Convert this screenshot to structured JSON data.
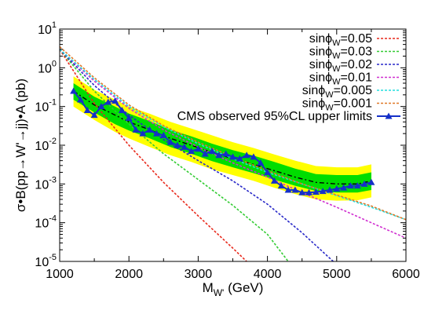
{
  "chart_data": {
    "type": "line",
    "xlabel_main": "M",
    "xlabel_sub": "W'",
    "xlabel_unit": " (GeV)",
    "ylabel": "σ•B(pp→W'→jj)•A (pb)",
    "xlim": [
      1000,
      6000
    ],
    "ylim": [
      1e-05,
      10
    ],
    "yscale": "log",
    "legend_position": "top-right",
    "x_ticks": [
      "1000",
      "2000",
      "3000",
      "4000",
      "5000",
      "6000"
    ],
    "y_ticks": [
      {
        "base": "10",
        "exp": "-5"
      },
      {
        "base": "10",
        "exp": "-4"
      },
      {
        "base": "10",
        "exp": "-3"
      },
      {
        "base": "10",
        "exp": "-2"
      },
      {
        "base": "10",
        "exp": "-1"
      },
      {
        "base": "10",
        "exp": "0"
      },
      {
        "base": "10",
        "exp": "1"
      }
    ],
    "series": [
      {
        "name_main": "sinϕ",
        "name_sub": "W",
        "name_val": "=0.05",
        "color": "#e8291c",
        "x": [
          1000,
          1500,
          2000,
          2500,
          3000,
          3500,
          3700
        ],
        "y": [
          3.0,
          0.12,
          0.01,
          0.0011,
          0.00015,
          2.2e-05,
          1e-05
        ]
      },
      {
        "name_main": "sinϕ",
        "name_sub": "W",
        "name_val": "=0.03",
        "color": "#33cc33",
        "x": [
          1000,
          1500,
          2000,
          2500,
          3000,
          3500,
          4000,
          4300
        ],
        "y": [
          3.0,
          0.25,
          0.035,
          0.006,
          0.0013,
          0.00028,
          5e-05,
          1e-05
        ]
      },
      {
        "name_main": "sinϕ",
        "name_sub": "W",
        "name_val": "=0.02",
        "color": "#2828c8",
        "x": [
          1000,
          1500,
          2000,
          2500,
          3000,
          3500,
          4000,
          4500,
          4950
        ],
        "y": [
          3.0,
          0.35,
          0.06,
          0.014,
          0.004,
          0.0012,
          0.0003,
          5.5e-05,
          1e-05
        ]
      },
      {
        "name_main": "sinϕ",
        "name_sub": "W",
        "name_val": "=0.01",
        "color": "#d030d0",
        "x": [
          1000,
          1500,
          2000,
          2500,
          3000,
          3500,
          4000,
          4500,
          5000,
          5500,
          6000
        ],
        "y": [
          3.0,
          0.45,
          0.09,
          0.025,
          0.009,
          0.0035,
          0.0015,
          0.0006,
          0.00025,
          0.0001,
          4e-05
        ]
      },
      {
        "name_main": "sinϕ",
        "name_sub": "W",
        "name_val": "=0.005",
        "color": "#22dddd",
        "x": [
          1000,
          1500,
          2000,
          2500,
          3000,
          3500,
          4000,
          4500,
          5000,
          5500,
          6000
        ],
        "y": [
          3.0,
          0.5,
          0.1,
          0.03,
          0.011,
          0.0045,
          0.002,
          0.001,
          0.0005,
          0.00025,
          0.00012
        ]
      },
      {
        "name_main": "sinϕ",
        "name_sub": "W",
        "name_val": "=0.001",
        "color": "#e07828",
        "x": [
          1000,
          1500,
          2000,
          2500,
          3000,
          3500,
          4000,
          4500,
          5000,
          5500,
          6000
        ],
        "y": [
          3.5,
          0.55,
          0.11,
          0.032,
          0.012,
          0.005,
          0.0022,
          0.001,
          0.00052,
          0.00027,
          0.00012
        ]
      }
    ],
    "observed": {
      "name": "CMS observed 95%CL upper limits",
      "color": "#1530c8",
      "x": [
        1200,
        1300,
        1400,
        1500,
        1600,
        1700,
        1800,
        1900,
        2000,
        2100,
        2200,
        2300,
        2400,
        2500,
        2600,
        2700,
        2800,
        2900,
        3000,
        3100,
        3200,
        3300,
        3400,
        3500,
        3600,
        3700,
        3800,
        3900,
        4000,
        4100,
        4200,
        4300,
        4400,
        4500,
        4600,
        4700,
        4800,
        4900,
        5000,
        5100,
        5200,
        5300,
        5400,
        5500
      ],
      "y": [
        0.25,
        0.15,
        0.08,
        0.06,
        0.1,
        0.13,
        0.14,
        0.08,
        0.05,
        0.025,
        0.02,
        0.025,
        0.02,
        0.018,
        0.012,
        0.01,
        0.009,
        0.007,
        0.008,
        0.006,
        0.007,
        0.0055,
        0.006,
        0.005,
        0.0045,
        0.0055,
        0.005,
        0.0035,
        0.002,
        0.0012,
        0.0009,
        0.0007,
        0.0007,
        0.0006,
        0.0006,
        0.00062,
        0.00065,
        0.0007,
        0.00075,
        0.0008,
        0.0009,
        0.0009,
        0.001,
        0.0011
      ]
    },
    "expected": {
      "color": "#000000",
      "x": [
        1200,
        1500,
        1800,
        2000,
        2300,
        2600,
        2900,
        3200,
        3500,
        3800,
        4100,
        4400,
        4700,
        5000,
        5300,
        5500
      ],
      "y": [
        0.25,
        0.11,
        0.06,
        0.04,
        0.025,
        0.015,
        0.01,
        0.0065,
        0.0045,
        0.0032,
        0.0022,
        0.0015,
        0.0011,
        0.001,
        0.001,
        0.0012
      ]
    },
    "band_1sigma": {
      "color": "#00dd00",
      "x": [
        1200,
        1500,
        1800,
        2000,
        2300,
        2600,
        2900,
        3200,
        3500,
        3800,
        4100,
        4400,
        4700,
        5000,
        5300,
        5500
      ],
      "lo": [
        0.15,
        0.07,
        0.035,
        0.024,
        0.015,
        0.009,
        0.006,
        0.0039,
        0.0027,
        0.0019,
        0.0013,
        0.0009,
        0.00066,
        0.0006,
        0.0006,
        0.0007
      ],
      "hi": [
        0.4,
        0.18,
        0.1,
        0.066,
        0.042,
        0.025,
        0.017,
        0.011,
        0.0075,
        0.0054,
        0.0037,
        0.0025,
        0.0018,
        0.0017,
        0.0017,
        0.002
      ]
    },
    "band_2sigma": {
      "color": "#ffff00",
      "x": [
        1200,
        1500,
        1800,
        2000,
        2300,
        2600,
        2900,
        3200,
        3500,
        3800,
        4100,
        4400,
        4700,
        5000,
        5300,
        5500
      ],
      "lo": [
        0.1,
        0.045,
        0.022,
        0.015,
        0.009,
        0.0055,
        0.0037,
        0.0024,
        0.0017,
        0.0012,
        0.0008,
        0.00055,
        0.0004,
        0.00037,
        0.00038,
        0.00045
      ],
      "hi": [
        0.6,
        0.27,
        0.15,
        0.1,
        0.065,
        0.04,
        0.027,
        0.018,
        0.012,
        0.0085,
        0.0058,
        0.004,
        0.0029,
        0.0027,
        0.0027,
        0.0032
      ]
    }
  }
}
